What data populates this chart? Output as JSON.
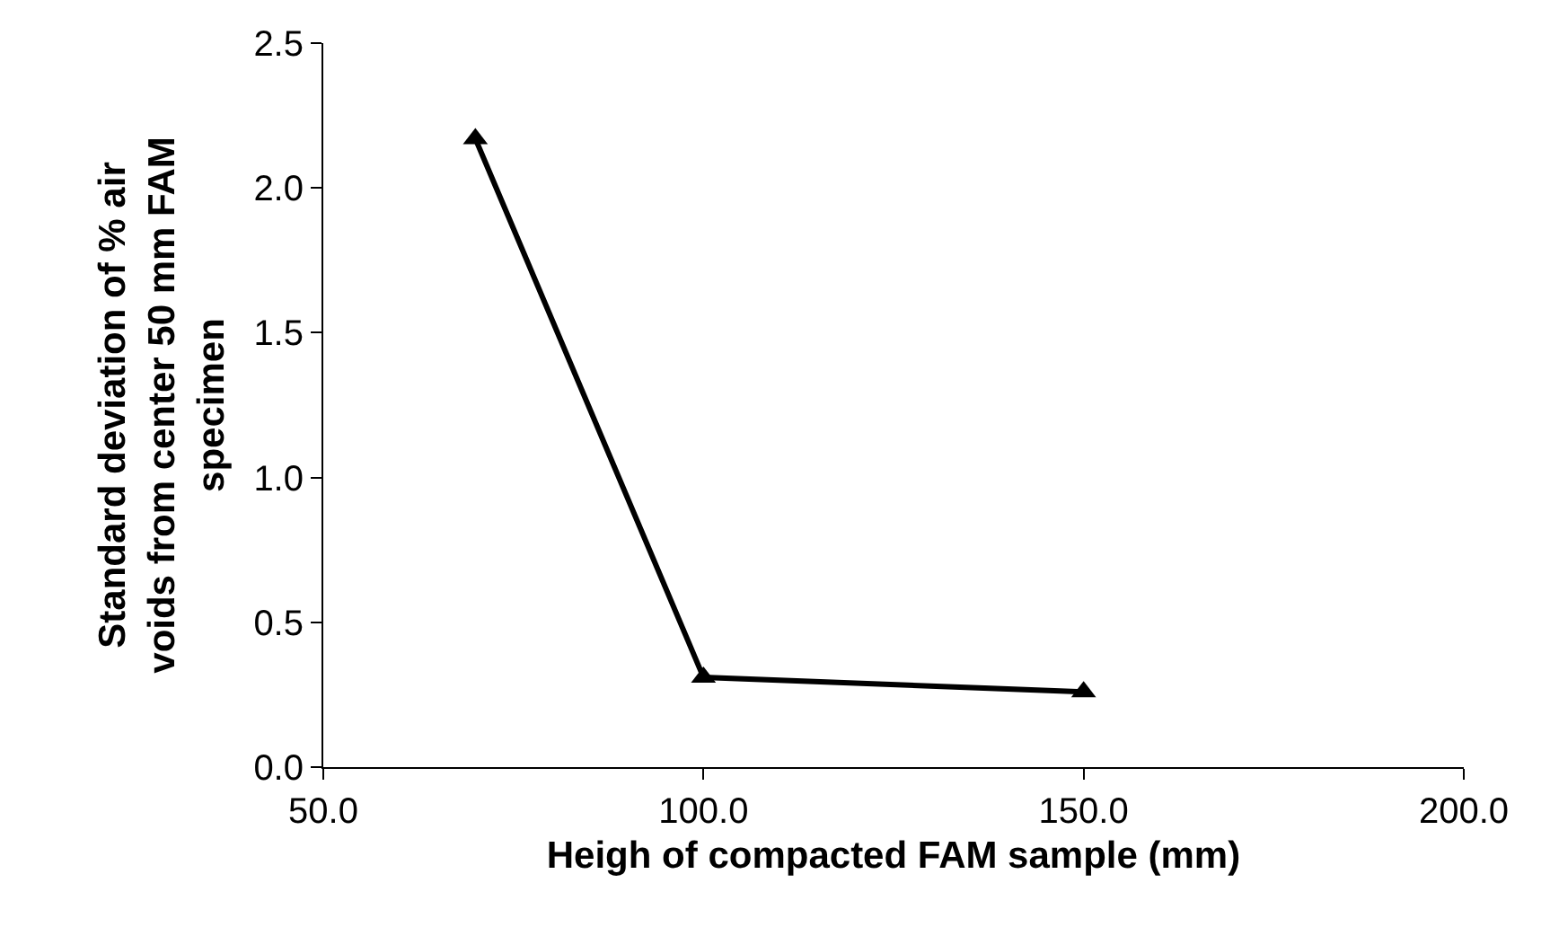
{
  "chart_data": {
    "type": "line",
    "xlabel": "Heigh of compacted FAM sample (mm)",
    "ylabel": "Standard deviation of % air voids from center 50 mm FAM specimen",
    "x": [
      70,
      100,
      150
    ],
    "series": [
      {
        "color": "#000000",
        "values": [
          2.17,
          0.31,
          0.26
        ]
      }
    ],
    "xlim": [
      50,
      200
    ],
    "xticks": [
      {
        "value": 50,
        "label": "50.0"
      },
      {
        "value": 100,
        "label": "100.0"
      },
      {
        "value": 150,
        "label": "150.0"
      },
      {
        "value": 200,
        "label": "200.0"
      }
    ],
    "ylim": [
      0,
      2.5
    ],
    "yticks": [
      {
        "value": 0,
        "label": "0.0"
      },
      {
        "value": 0.5,
        "label": "0.5"
      },
      {
        "value": 1,
        "label": "1.0"
      },
      {
        "value": 1.5,
        "label": "1.5"
      },
      {
        "value": 2,
        "label": "2.0"
      },
      {
        "value": 2.5,
        "label": "2.5"
      }
    ],
    "marker": "triangle",
    "line_style": "solid"
  }
}
